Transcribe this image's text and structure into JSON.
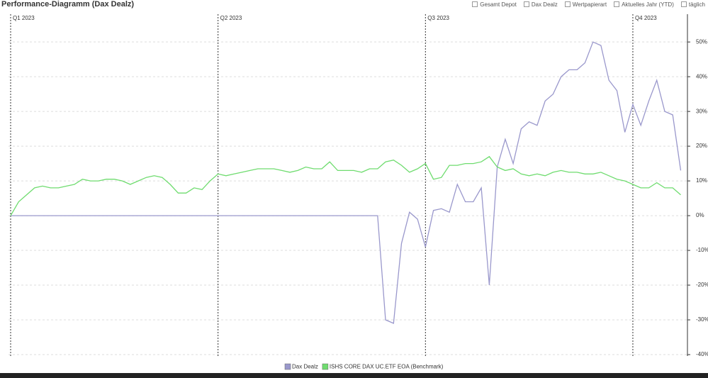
{
  "header": {
    "title": "Performance-Diagramm (Dax Dealz)",
    "toolbar": [
      "Gesamt Depot",
      "Dax Dealz",
      "Wertpapierart",
      "Aktuelles Jahr (YTD)",
      "täglich"
    ]
  },
  "chart_data": {
    "type": "line",
    "categories": [
      "Q1 2023",
      null,
      null,
      null,
      null,
      null,
      null,
      null,
      null,
      null,
      null,
      null,
      null,
      null,
      null,
      null,
      null,
      null,
      null,
      null,
      null,
      null,
      null,
      null,
      null,
      null,
      "Q2 2023",
      null,
      null,
      null,
      null,
      null,
      null,
      null,
      null,
      null,
      null,
      null,
      null,
      null,
      null,
      null,
      null,
      null,
      null,
      null,
      null,
      null,
      null,
      null,
      null,
      null,
      "Q3 2023",
      null,
      null,
      null,
      null,
      null,
      null,
      null,
      null,
      null,
      null,
      null,
      null,
      null,
      null,
      null,
      null,
      null,
      null,
      null,
      null,
      null,
      null,
      null,
      null,
      null,
      "Q4 2023",
      null,
      null,
      null,
      null,
      null,
      null
    ],
    "series": [
      {
        "name": "Dax Dealz",
        "color": "#9a98cc",
        "values": [
          0,
          0,
          0,
          0,
          0,
          0,
          0,
          0,
          0,
          0,
          0,
          0,
          0,
          0,
          0,
          0,
          0,
          0,
          0,
          0,
          0,
          0,
          0,
          0,
          0,
          0,
          0,
          0,
          0,
          0,
          0,
          0,
          0,
          0,
          0,
          0,
          0,
          0,
          0,
          0,
          0,
          0,
          0,
          0,
          0,
          0,
          0,
          -30,
          -31,
          -8,
          1,
          -1,
          -9,
          1.5,
          2,
          1,
          9,
          4,
          4,
          8,
          -20,
          14,
          22,
          15,
          25,
          27,
          26,
          33,
          35,
          40,
          42,
          42,
          44,
          50,
          49,
          39,
          36,
          24,
          32,
          26,
          33,
          39,
          30,
          29,
          13
        ]
      },
      {
        "name": "ISHS CORE DAX UC.ETF EOA (Benchmark)",
        "color": "#6fdc6f",
        "values": [
          0,
          4,
          6,
          8,
          8.5,
          8,
          8,
          8.5,
          9,
          10.5,
          10,
          10,
          10.5,
          10.5,
          10,
          9,
          10,
          11,
          11.5,
          11,
          9,
          6.5,
          6.5,
          8,
          7.5,
          10,
          12,
          11.5,
          12,
          12.5,
          13,
          13.5,
          13.5,
          13.5,
          13,
          12.5,
          13,
          14,
          13.5,
          13.5,
          15.5,
          13,
          13,
          13,
          12.5,
          13.5,
          13.5,
          15.5,
          16,
          14.5,
          12.5,
          13.5,
          15,
          10.5,
          11,
          14.5,
          14.5,
          15,
          15,
          15.5,
          17,
          14,
          13,
          13.5,
          12,
          11.5,
          12,
          11.5,
          12.5,
          13,
          12.5,
          12.5,
          12,
          12,
          12.5,
          11.5,
          10.5,
          10,
          9,
          8,
          8,
          9.5,
          8,
          8,
          6
        ]
      }
    ],
    "ylim": [
      -40,
      58
    ],
    "yticks": [
      {
        "value": -40,
        "label": "-40%"
      },
      {
        "value": -30,
        "label": "-30%"
      },
      {
        "value": -20,
        "label": "-20%"
      },
      {
        "value": -10,
        "label": "-10%"
      },
      {
        "value": 0,
        "label": "0%"
      },
      {
        "value": 10,
        "label": "10%"
      },
      {
        "value": 20,
        "label": "20%"
      },
      {
        "value": 30,
        "label": "30%"
      },
      {
        "value": 40,
        "label": "40%"
      },
      {
        "value": 50,
        "label": "50%"
      }
    ],
    "grid": true
  }
}
